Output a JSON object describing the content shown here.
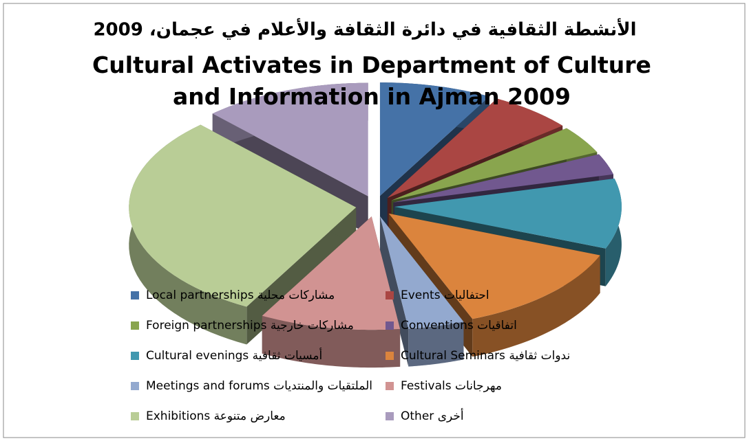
{
  "chart_data": {
    "type": "pie",
    "title": "الأنشطة الثقافية في دائرة الثقافة والأعلام في عجمان، 2009",
    "subtitle": "Cultural Activates in Department of Culture and Information in Ajman 2009",
    "categories": [
      "Local partnerships مشاركات محلية",
      "Events احتفاليات",
      "Foreign partnerships مشاركات خارجية",
      "Conventions اتفاقيات",
      "Cultural evenings أمسيات ثقافية",
      "Cultural Seminars ندوات ثقافية",
      "Meetings and forums الملتقيات والمنتديات",
      "Festivals مهرجانات",
      "Exhibitions معارض متنوعة",
      "Other أخرى"
    ],
    "values": [
      8,
      6,
      4,
      3,
      10,
      13,
      4,
      10,
      30,
      12
    ],
    "colors": [
      "#4572a7",
      "#aa4643",
      "#89a54e",
      "#71588f",
      "#4198af",
      "#db843d",
      "#93a9cf",
      "#d19392",
      "#b9cd96",
      "#a99bbd"
    ]
  }
}
